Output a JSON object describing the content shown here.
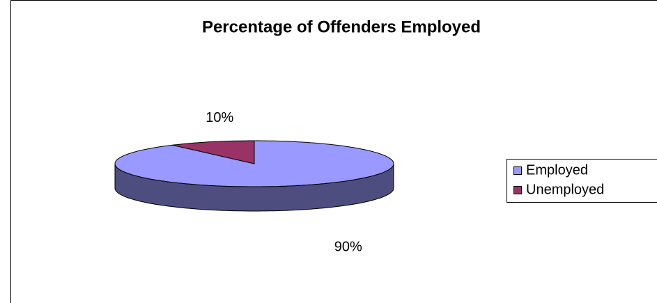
{
  "chart_data": {
    "type": "pie",
    "title": "Percentage of Offenders Employed",
    "categories": [
      "Employed",
      "Unemployed"
    ],
    "values": [
      90,
      10
    ],
    "value_labels": [
      "90%",
      "10%"
    ],
    "colors": [
      "#9999ff",
      "#993366"
    ],
    "legend": "right"
  }
}
